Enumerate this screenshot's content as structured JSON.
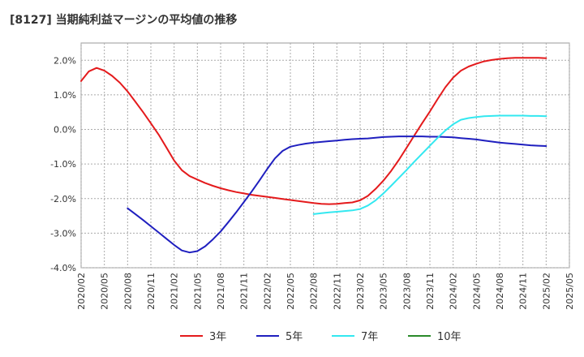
{
  "chart_data": {
    "type": "line",
    "title": "[8127]  当期純利益マージンの平均値の推移",
    "xlabel": "",
    "ylabel": "",
    "ylim": [
      -4.0,
      2.5
    ],
    "y_ticks": [
      "2.0%",
      "1.0%",
      "0.0%",
      "-1.0%",
      "-2.0%",
      "-3.0%",
      "-4.0%"
    ],
    "y_tick_values": [
      2.0,
      1.0,
      0.0,
      -1.0,
      -2.0,
      -3.0,
      -4.0
    ],
    "x_ticks": [
      "2020/02",
      "2020/05",
      "2020/08",
      "2020/11",
      "2021/02",
      "2021/05",
      "2021/08",
      "2021/11",
      "2022/02",
      "2022/05",
      "2022/08",
      "2022/11",
      "2023/02",
      "2023/05",
      "2023/08",
      "2023/11",
      "2024/02",
      "2024/05",
      "2024/08",
      "2024/11",
      "2025/02",
      "2025/05"
    ],
    "grid": true,
    "legend_position": "bottom",
    "series": [
      {
        "name": "3年",
        "color": "#e41a1c",
        "points": [
          [
            "2020/02",
            1.4
          ],
          [
            "2020/03",
            1.68
          ],
          [
            "2020/04",
            1.78
          ],
          [
            "2020/05",
            1.7
          ],
          [
            "2020/06",
            1.55
          ],
          [
            "2020/07",
            1.35
          ],
          [
            "2020/08",
            1.1
          ],
          [
            "2020/09",
            0.8
          ],
          [
            "2020/10",
            0.5
          ],
          [
            "2020/11",
            0.18
          ],
          [
            "2020/12",
            -0.15
          ],
          [
            "2021/01",
            -0.52
          ],
          [
            "2021/02",
            -0.9
          ],
          [
            "2021/03",
            -1.18
          ],
          [
            "2021/04",
            -1.35
          ],
          [
            "2021/05",
            -1.45
          ],
          [
            "2021/06",
            -1.55
          ],
          [
            "2021/07",
            -1.63
          ],
          [
            "2021/08",
            -1.7
          ],
          [
            "2021/09",
            -1.76
          ],
          [
            "2021/10",
            -1.81
          ],
          [
            "2021/11",
            -1.85
          ],
          [
            "2021/12",
            -1.89
          ],
          [
            "2022/01",
            -1.92
          ],
          [
            "2022/02",
            -1.95
          ],
          [
            "2022/03",
            -1.98
          ],
          [
            "2022/04",
            -2.01
          ],
          [
            "2022/05",
            -2.04
          ],
          [
            "2022/06",
            -2.07
          ],
          [
            "2022/07",
            -2.1
          ],
          [
            "2022/08",
            -2.13
          ],
          [
            "2022/09",
            -2.15
          ],
          [
            "2022/10",
            -2.16
          ],
          [
            "2022/11",
            -2.15
          ],
          [
            "2022/12",
            -2.13
          ],
          [
            "2023/01",
            -2.11
          ],
          [
            "2023/02",
            -2.05
          ],
          [
            "2023/03",
            -1.92
          ],
          [
            "2023/04",
            -1.72
          ],
          [
            "2023/05",
            -1.48
          ],
          [
            "2023/06",
            -1.2
          ],
          [
            "2023/07",
            -0.88
          ],
          [
            "2023/08",
            -0.53
          ],
          [
            "2023/09",
            -0.17
          ],
          [
            "2023/10",
            0.18
          ],
          [
            "2023/11",
            0.52
          ],
          [
            "2023/12",
            0.88
          ],
          [
            "2024/01",
            1.22
          ],
          [
            "2024/02",
            1.5
          ],
          [
            "2024/03",
            1.7
          ],
          [
            "2024/04",
            1.82
          ],
          [
            "2024/05",
            1.9
          ],
          [
            "2024/06",
            1.97
          ],
          [
            "2024/07",
            2.01
          ],
          [
            "2024/08",
            2.04
          ],
          [
            "2024/09",
            2.06
          ],
          [
            "2024/10",
            2.07
          ],
          [
            "2024/11",
            2.07
          ],
          [
            "2024/12",
            2.07
          ],
          [
            "2025/01",
            2.07
          ],
          [
            "2025/02",
            2.06
          ]
        ]
      },
      {
        "name": "5年",
        "color": "#1f1fbf",
        "points": [
          [
            "2020/08",
            -2.28
          ],
          [
            "2020/09",
            -2.45
          ],
          [
            "2020/10",
            -2.62
          ],
          [
            "2020/11",
            -2.8
          ],
          [
            "2020/12",
            -2.98
          ],
          [
            "2021/01",
            -3.16
          ],
          [
            "2021/02",
            -3.34
          ],
          [
            "2021/03",
            -3.5
          ],
          [
            "2021/04",
            -3.56
          ],
          [
            "2021/05",
            -3.52
          ],
          [
            "2021/06",
            -3.38
          ],
          [
            "2021/07",
            -3.18
          ],
          [
            "2021/08",
            -2.95
          ],
          [
            "2021/09",
            -2.68
          ],
          [
            "2021/10",
            -2.4
          ],
          [
            "2021/11",
            -2.1
          ],
          [
            "2021/12",
            -1.8
          ],
          [
            "2022/01",
            -1.48
          ],
          [
            "2022/02",
            -1.15
          ],
          [
            "2022/03",
            -0.84
          ],
          [
            "2022/04",
            -0.62
          ],
          [
            "2022/05",
            -0.5
          ],
          [
            "2022/06",
            -0.45
          ],
          [
            "2022/07",
            -0.41
          ],
          [
            "2022/08",
            -0.38
          ],
          [
            "2022/09",
            -0.36
          ],
          [
            "2022/10",
            -0.34
          ],
          [
            "2022/11",
            -0.32
          ],
          [
            "2022/12",
            -0.3
          ],
          [
            "2023/01",
            -0.28
          ],
          [
            "2023/02",
            -0.27
          ],
          [
            "2023/03",
            -0.26
          ],
          [
            "2023/04",
            -0.24
          ],
          [
            "2023/05",
            -0.22
          ],
          [
            "2023/06",
            -0.21
          ],
          [
            "2023/07",
            -0.2
          ],
          [
            "2023/08",
            -0.2
          ],
          [
            "2023/09",
            -0.2
          ],
          [
            "2023/10",
            -0.2
          ],
          [
            "2023/11",
            -0.21
          ],
          [
            "2023/12",
            -0.21
          ],
          [
            "2024/01",
            -0.22
          ],
          [
            "2024/02",
            -0.23
          ],
          [
            "2024/03",
            -0.25
          ],
          [
            "2024/04",
            -0.27
          ],
          [
            "2024/05",
            -0.29
          ],
          [
            "2024/06",
            -0.32
          ],
          [
            "2024/07",
            -0.35
          ],
          [
            "2024/08",
            -0.38
          ],
          [
            "2024/09",
            -0.4
          ],
          [
            "2024/10",
            -0.42
          ],
          [
            "2024/11",
            -0.44
          ],
          [
            "2024/12",
            -0.46
          ],
          [
            "2025/01",
            -0.47
          ],
          [
            "2025/02",
            -0.48
          ]
        ]
      },
      {
        "name": "7年",
        "color": "#33e8f0",
        "points": [
          [
            "2022/08",
            -2.45
          ],
          [
            "2022/09",
            -2.42
          ],
          [
            "2022/10",
            -2.4
          ],
          [
            "2022/11",
            -2.38
          ],
          [
            "2022/12",
            -2.36
          ],
          [
            "2023/01",
            -2.34
          ],
          [
            "2023/02",
            -2.3
          ],
          [
            "2023/03",
            -2.2
          ],
          [
            "2023/04",
            -2.05
          ],
          [
            "2023/05",
            -1.85
          ],
          [
            "2023/06",
            -1.63
          ],
          [
            "2023/07",
            -1.4
          ],
          [
            "2023/08",
            -1.17
          ],
          [
            "2023/09",
            -0.93
          ],
          [
            "2023/10",
            -0.7
          ],
          [
            "2023/11",
            -0.47
          ],
          [
            "2023/12",
            -0.24
          ],
          [
            "2024/01",
            -0.03
          ],
          [
            "2024/02",
            0.15
          ],
          [
            "2024/03",
            0.28
          ],
          [
            "2024/04",
            0.33
          ],
          [
            "2024/05",
            0.36
          ],
          [
            "2024/06",
            0.38
          ],
          [
            "2024/07",
            0.39
          ],
          [
            "2024/08",
            0.4
          ],
          [
            "2024/09",
            0.4
          ],
          [
            "2024/10",
            0.4
          ],
          [
            "2024/11",
            0.4
          ],
          [
            "2024/12",
            0.39
          ],
          [
            "2025/01",
            0.39
          ],
          [
            "2025/02",
            0.38
          ]
        ]
      },
      {
        "name": "10年",
        "color": "#2a8a2a",
        "points": []
      }
    ]
  }
}
